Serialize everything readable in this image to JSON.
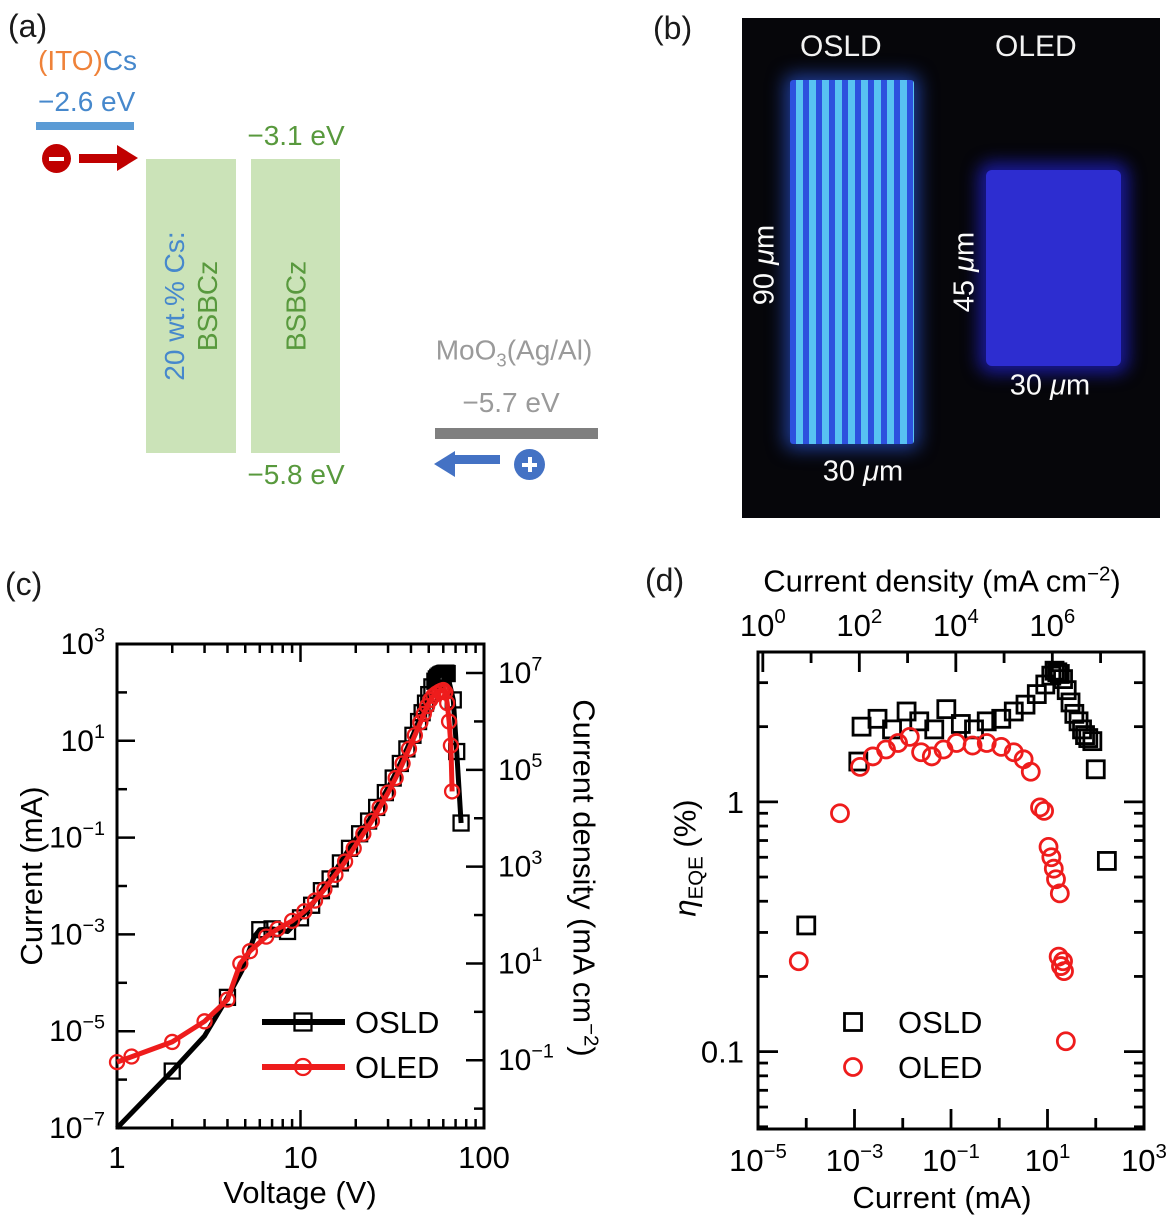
{
  "panel_a": {
    "label": "(a)",
    "cathode": {
      "material_pre": "(ITO)",
      "material_post": "Cs",
      "level": "−2.6 eV"
    },
    "electron_sign": "−",
    "hole_sign": "+",
    "layer1": {
      "line1": "20 wt.% Cs:",
      "line2": "BSBCz"
    },
    "layer2": {
      "name": "BSBCz",
      "lumo": "−3.1 eV",
      "homo": "−5.8 eV"
    },
    "anode": {
      "name_pre": "MoO",
      "name_sub": "3",
      "name_post": "(Ag/Al)",
      "level": "−5.7 eV"
    },
    "colors": {
      "orange": "#ef8239",
      "blue_text": "#4688cc",
      "blue_bar": "#5b9bd5",
      "red": "#c00000",
      "green_fill": "#cbe3b8",
      "green_text": "#58993d",
      "gray_text": "#9a9a9a",
      "gray_bar": "#7f7f7f",
      "arrow_blue": "#4472c4"
    }
  },
  "panel_b": {
    "label": "(b)",
    "left_device": {
      "title": "OSLD",
      "height_parts": [
        "90 ",
        "μ",
        "m"
      ],
      "width_parts": [
        "30 ",
        "μ",
        "m"
      ]
    },
    "right_device": {
      "title": "OLED",
      "height_parts": [
        "45 ",
        "μ",
        "m"
      ],
      "width_parts": [
        "30 ",
        "μ",
        "m"
      ]
    }
  },
  "chart_data": [
    {
      "id": "panel_c",
      "type": "line",
      "panel_label": "(c)",
      "xlabel": "Voltage (V)",
      "ylabel_left": "Current (mA)",
      "ylabel_right_parts": {
        "pre": "Current density (mA cm",
        "sup": "−2",
        "post": ")"
      },
      "xlim": [
        1,
        100
      ],
      "ylim_left": [
        1e-07,
        1000.0
      ],
      "right_axis_offset_decades": 4.6,
      "x_tick_labels": [
        "1",
        "10",
        "100"
      ],
      "x_tick_values": [
        1,
        10,
        100
      ],
      "y_left_labeled_exps": [
        3,
        1,
        -1,
        -3,
        -5,
        -7
      ],
      "y_right_labeled_exps": [
        7,
        5,
        3,
        1,
        -1
      ],
      "grid": false,
      "legend_position": "lower right inside",
      "series": [
        {
          "name": "OSLD",
          "color": "#000000",
          "marker": "square",
          "line": [
            [
              1,
              1e-07
            ],
            [
              2,
              1.5e-06
            ],
            [
              3,
              8e-06
            ],
            [
              4,
              5e-05
            ],
            [
              4.8,
              0.00018
            ],
            [
              5.6,
              0.0009
            ],
            [
              6,
              0.00125
            ],
            [
              7,
              0.0013
            ],
            [
              8.5,
              0.00115
            ],
            [
              10,
              0.0022
            ],
            [
              11.5,
              0.004
            ],
            [
              13,
              0.008
            ],
            [
              14.5,
              0.014
            ],
            [
              16.5,
              0.03
            ],
            [
              18.5,
              0.06
            ],
            [
              21,
              0.12
            ],
            [
              23.5,
              0.22
            ],
            [
              26,
              0.42
            ],
            [
              29,
              0.85
            ],
            [
              32,
              1.7
            ],
            [
              35,
              3.4
            ],
            [
              38,
              6.8
            ],
            [
              41,
              13
            ],
            [
              44,
              25
            ],
            [
              46,
              38
            ],
            [
              48,
              60
            ],
            [
              50,
              90
            ],
            [
              52,
              130
            ],
            [
              54,
              170
            ],
            [
              56,
              205
            ],
            [
              58,
              228
            ],
            [
              60,
              242
            ],
            [
              62,
              250
            ],
            [
              63,
              245
            ],
            [
              68,
              70
            ],
            [
              71,
              6
            ],
            [
              75,
              0.2
            ]
          ],
          "markers": [
            [
              2,
              1.5e-06
            ],
            [
              4,
              5e-05
            ],
            [
              6,
              0.00125
            ],
            [
              7,
              0.0013
            ],
            [
              8.5,
              0.00115
            ],
            [
              10,
              0.0022
            ],
            [
              11.5,
              0.004
            ],
            [
              13,
              0.008
            ],
            [
              14.5,
              0.014
            ],
            [
              16.5,
              0.03
            ],
            [
              18.5,
              0.06
            ],
            [
              21,
              0.12
            ],
            [
              23.5,
              0.22
            ],
            [
              26,
              0.42
            ],
            [
              29,
              0.85
            ],
            [
              32,
              1.7
            ],
            [
              35,
              3.4
            ],
            [
              38,
              6.8
            ],
            [
              41,
              13
            ],
            [
              44,
              25
            ],
            [
              46,
              38
            ],
            [
              48,
              60
            ],
            [
              50,
              90
            ],
            [
              52,
              130
            ],
            [
              54,
              170
            ],
            [
              55,
              190
            ],
            [
              56,
              205
            ],
            [
              57,
              218
            ],
            [
              58,
              228
            ],
            [
              59,
              236
            ],
            [
              60,
              242
            ],
            [
              61,
              247
            ],
            [
              62,
              250
            ],
            [
              63,
              245
            ],
            [
              68,
              70
            ],
            [
              71,
              6
            ],
            [
              75,
              0.2
            ]
          ]
        },
        {
          "name": "OLED",
          "color": "#ee1c1c",
          "marker": "circle",
          "line": [
            [
              1,
              2.3e-06
            ],
            [
              2,
              6e-06
            ],
            [
              3,
              1.6e-05
            ],
            [
              4,
              4.5e-05
            ],
            [
              4.7,
              0.00025
            ],
            [
              5.3,
              0.00045
            ],
            [
              6.5,
              0.0009
            ],
            [
              7.5,
              0.0013
            ],
            [
              9,
              0.0019
            ],
            [
              10.5,
              0.003
            ],
            [
              12,
              0.005
            ],
            [
              13.5,
              0.0085
            ],
            [
              15.5,
              0.017
            ],
            [
              17.5,
              0.032
            ],
            [
              19.5,
              0.06
            ],
            [
              22,
              0.12
            ],
            [
              24.5,
              0.22
            ],
            [
              27,
              0.42
            ],
            [
              30,
              0.85
            ],
            [
              33,
              1.7
            ],
            [
              36,
              3.4
            ],
            [
              39,
              6.8
            ],
            [
              42,
              13
            ],
            [
              45,
              24
            ],
            [
              47,
              36
            ],
            [
              49,
              52
            ],
            [
              51,
              70
            ],
            [
              53,
              85
            ],
            [
              55,
              95
            ],
            [
              57,
              103
            ],
            [
              58.5,
              108
            ],
            [
              60,
              112
            ],
            [
              61.5,
              100
            ],
            [
              63,
              60
            ],
            [
              64.5,
              25
            ],
            [
              66,
              8
            ],
            [
              67,
              0.9
            ]
          ],
          "markers": [
            [
              1,
              2.3e-06
            ],
            [
              1.2,
              3e-06
            ],
            [
              2,
              6e-06
            ],
            [
              3,
              1.6e-05
            ],
            [
              4,
              4.5e-05
            ],
            [
              4.7,
              0.00025
            ],
            [
              5.3,
              0.00045
            ],
            [
              6.5,
              0.0009
            ],
            [
              7.5,
              0.0013
            ],
            [
              9,
              0.0019
            ],
            [
              10.5,
              0.003
            ],
            [
              12,
              0.005
            ],
            [
              13.5,
              0.0085
            ],
            [
              15.5,
              0.017
            ],
            [
              17.5,
              0.032
            ],
            [
              19.5,
              0.06
            ],
            [
              22,
              0.12
            ],
            [
              24.5,
              0.22
            ],
            [
              27,
              0.42
            ],
            [
              30,
              0.85
            ],
            [
              33,
              1.7
            ],
            [
              36,
              3.4
            ],
            [
              39,
              6.8
            ],
            [
              42,
              13
            ],
            [
              45,
              24
            ],
            [
              47,
              36
            ],
            [
              49,
              52
            ],
            [
              51,
              70
            ],
            [
              53,
              85
            ],
            [
              55,
              95
            ],
            [
              57,
              103
            ],
            [
              58.5,
              108
            ],
            [
              60,
              112
            ],
            [
              61.5,
              100
            ],
            [
              63,
              60
            ],
            [
              64.5,
              25
            ],
            [
              66,
              8
            ],
            [
              67,
              0.9
            ]
          ]
        }
      ]
    },
    {
      "id": "panel_d",
      "type": "scatter",
      "panel_label": "(d)",
      "xlabel_bottom": "Current (mA)",
      "xlabel_top_parts": {
        "pre": "Current density (mA cm",
        "sup": "−2",
        "post": ")"
      },
      "ylabel_parts": {
        "italic": "η",
        "sub": "EQE",
        "post": " (%)"
      },
      "xlim": [
        1e-05,
        1000.0
      ],
      "ylim": [
        0.049,
        3.98
      ],
      "top_axis_offset_decades": 4.9,
      "x_bottom_labeled_exps": [
        -5,
        -3,
        -1,
        1,
        3
      ],
      "x_top_labeled_exps": [
        0,
        2,
        4,
        6
      ],
      "y_tick_labels": [
        "1",
        "0.1"
      ],
      "y_tick_values": [
        1,
        0.1
      ],
      "grid": false,
      "legend_position": "lower center inside",
      "series": [
        {
          "name": "OSLD",
          "color": "#000000",
          "marker": "square",
          "markers": [
            [
              0.0001,
              0.32
            ],
            [
              0.0012,
              1.45
            ],
            [
              0.0014,
              2.0
            ],
            [
              0.003,
              2.15
            ],
            [
              0.006,
              1.95
            ],
            [
              0.012,
              2.3
            ],
            [
              0.022,
              2.1
            ],
            [
              0.045,
              1.95
            ],
            [
              0.08,
              2.35
            ],
            [
              0.16,
              2.05
            ],
            [
              0.3,
              1.95
            ],
            [
              0.55,
              2.1
            ],
            [
              1.1,
              2.15
            ],
            [
              2,
              2.3
            ],
            [
              3.5,
              2.45
            ],
            [
              6,
              2.7
            ],
            [
              9,
              2.95
            ],
            [
              12,
              3.2
            ],
            [
              14,
              3.35
            ],
            [
              16,
              3.3
            ],
            [
              18,
              3.25
            ],
            [
              21,
              3.1
            ],
            [
              25,
              2.8
            ],
            [
              30,
              2.5
            ],
            [
              36,
              2.25
            ],
            [
              44,
              2.1
            ],
            [
              52,
              1.95
            ],
            [
              60,
              1.85
            ],
            [
              70,
              1.8
            ],
            [
              85,
              1.75
            ],
            [
              100,
              1.35
            ],
            [
              170,
              0.58
            ]
          ]
        },
        {
          "name": "OLED",
          "color": "#ee1c1c",
          "marker": "circle",
          "markers": [
            [
              7e-05,
              0.23
            ],
            [
              0.0005,
              0.9
            ],
            [
              0.0013,
              1.38
            ],
            [
              0.0024,
              1.52
            ],
            [
              0.0045,
              1.62
            ],
            [
              0.008,
              1.72
            ],
            [
              0.014,
              1.82
            ],
            [
              0.024,
              1.58
            ],
            [
              0.04,
              1.52
            ],
            [
              0.07,
              1.62
            ],
            [
              0.13,
              1.72
            ],
            [
              0.28,
              1.68
            ],
            [
              0.55,
              1.72
            ],
            [
              1.1,
              1.66
            ],
            [
              2,
              1.58
            ],
            [
              3.2,
              1.48
            ],
            [
              4.5,
              1.32
            ],
            [
              7,
              0.95
            ],
            [
              8.5,
              0.92
            ],
            [
              10.5,
              0.66
            ],
            [
              12,
              0.6
            ],
            [
              13.5,
              0.54
            ],
            [
              15,
              0.49
            ],
            [
              18,
              0.43
            ],
            [
              17,
              0.24
            ],
            [
              19,
              0.22
            ],
            [
              21,
              0.23
            ],
            [
              22,
              0.21
            ],
            [
              24,
              0.11
            ]
          ]
        }
      ]
    }
  ]
}
